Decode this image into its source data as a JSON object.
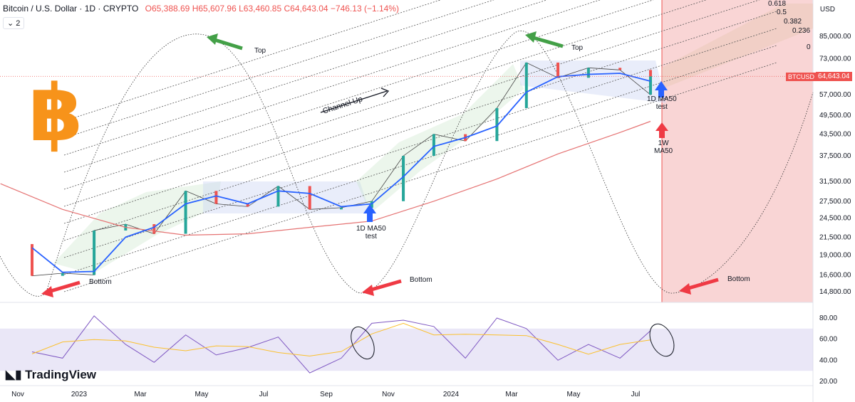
{
  "header": {
    "symbol": "Bitcoin / U.S. Dollar · 1D · CRYPTO",
    "open": "O65,388.69",
    "high": "H65,607.96",
    "low": "L63,460.85",
    "close": "C64,643.04",
    "change": "−746.13 (−1.14%)",
    "indicator_count": "2"
  },
  "currency_label": "USD",
  "brand": "TradingView",
  "logo_glyph": "฿",
  "last_price": {
    "ticker": "BTCUSD",
    "value": "64,643.04"
  },
  "colors": {
    "up": "#26a69a",
    "down": "#ef5350",
    "ma50": "#2962ff",
    "ma1w": "#e57373",
    "rsi": "#7e57c2",
    "rsi_ma": "#fbc02d",
    "red_arrow": "#ef3a44",
    "green_arrow": "#43a047",
    "blue_arrow": "#2962ff",
    "zone": "#f8d0d0"
  },
  "annotations": {
    "top1": "Top",
    "top2": "Top",
    "bottom1": "Bottom",
    "bottom2": "Bottom",
    "bottom3": "Bottom",
    "channel": "Channel Up",
    "ma50_test1": [
      "1D MA50",
      "test"
    ],
    "ma50_test2": [
      "1D MA50",
      "test"
    ],
    "ma1w": [
      "1W",
      "MA50"
    ]
  },
  "chart_data": {
    "type": "line",
    "price_axis_ticks": [
      85000,
      73000,
      64643.04,
      57000,
      49500,
      43500,
      37500,
      31500,
      27500,
      24500,
      21500,
      19000,
      16600,
      14800
    ],
    "price_axis_labels": [
      "85,000.00",
      "73,000.00",
      "64,643.04",
      "57,000.00",
      "49,500.00",
      "43,500.00",
      "37,500.00",
      "31,500.00",
      "27,500.00",
      "24,500.00",
      "21,500.00",
      "19,000.00",
      "16,600.00",
      "14,800.00"
    ],
    "rsi_axis_labels": [
      "80.00",
      "60.00",
      "40.00",
      "20.00"
    ],
    "rsi_axis_ticks": [
      80,
      60,
      40,
      20
    ],
    "time_labels": [
      "Nov",
      "2023",
      "Mar",
      "May",
      "Jul",
      "Sep",
      "Nov",
      "2024",
      "Mar",
      "May",
      "Jul"
    ],
    "fib_levels": [
      "0.618",
      "0.5",
      "0.382",
      "0.236",
      "0"
    ],
    "price_series": {
      "name": "BTCUSD",
      "x": [
        "2022-11",
        "2022-11",
        "2022-12",
        "2023-01",
        "2023-01",
        "2023-02",
        "2023-03",
        "2023-04",
        "2023-05",
        "2023-06",
        "2023-07",
        "2023-08",
        "2023-09",
        "2023-10",
        "2023-11",
        "2023-12",
        "2024-01",
        "2024-02",
        "2024-03",
        "2024-04",
        "2024-05",
        "2024-06",
        "2024-07",
        "2024-07"
      ],
      "values": [
        20500,
        16500,
        16800,
        16600,
        22500,
        23500,
        22000,
        29500,
        27000,
        26500,
        30500,
        26000,
        26300,
        27500,
        37500,
        43500,
        41500,
        52000,
        71000,
        64000,
        68500,
        67500,
        57000,
        64643
      ]
    },
    "ma50_1d": {
      "name": "1D MA50",
      "x": [
        "2022-11",
        "2022-12",
        "2023-01",
        "2023-02",
        "2023-03",
        "2023-04",
        "2023-05",
        "2023-06",
        "2023-07",
        "2023-08",
        "2023-09",
        "2023-10",
        "2023-11",
        "2023-12",
        "2024-01",
        "2024-02",
        "2024-03",
        "2024-04",
        "2024-05",
        "2024-06",
        "2024-07"
      ],
      "values": [
        20000,
        16900,
        17000,
        21500,
        23000,
        27000,
        28500,
        27000,
        29500,
        29000,
        26500,
        27000,
        32500,
        40000,
        42500,
        46000,
        58000,
        64500,
        65500,
        66000,
        62500
      ]
    },
    "ma50_1w": {
      "name": "1W MA50",
      "x": [
        "2022-10",
        "2022-12",
        "2023-02",
        "2023-04",
        "2023-06",
        "2023-08",
        "2023-10",
        "2023-12",
        "2024-02",
        "2024-04",
        "2024-06",
        "2024-07"
      ],
      "values": [
        31000,
        26000,
        23000,
        21800,
        22000,
        23000,
        24000,
        27500,
        32000,
        38000,
        44000,
        47500
      ]
    },
    "rsi": {
      "name": "RSI",
      "x": [
        "2022-11",
        "2022-12",
        "2023-01",
        "2023-02",
        "2023-03",
        "2023-04",
        "2023-05",
        "2023-06",
        "2023-07",
        "2023-08",
        "2023-09",
        "2023-10",
        "2023-11",
        "2023-12",
        "2024-01",
        "2024-02",
        "2024-03",
        "2024-04",
        "2024-05",
        "2024-06",
        "2024-07"
      ],
      "values": [
        48,
        42,
        82,
        55,
        38,
        64,
        45,
        52,
        62,
        28,
        42,
        75,
        78,
        72,
        42,
        80,
        70,
        40,
        55,
        42,
        68
      ]
    },
    "rsi_band": [
      30,
      70
    ]
  }
}
